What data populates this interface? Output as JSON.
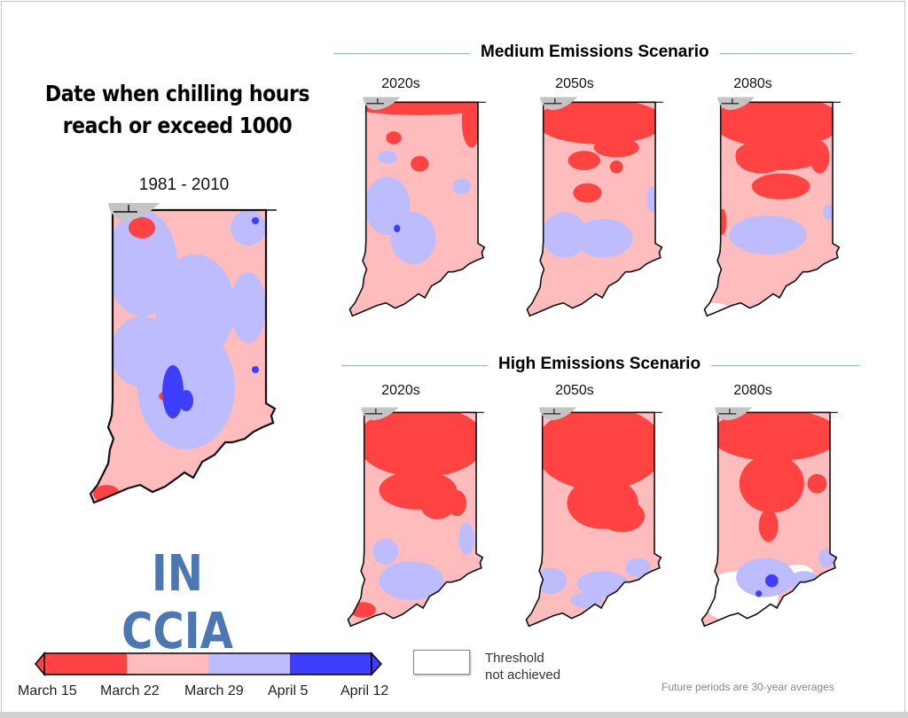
{
  "title": "Date when chilling hours reach or exceed 1000",
  "title_line1": "Date when chilling hours",
  "title_line2": "reach or exceed 1000",
  "baseline_period": "1981 - 2010",
  "logo_text": "IN CCIA",
  "scenarios": [
    {
      "title": "Medium Emissions Scenario",
      "periods": [
        "2020s",
        "2050s",
        "2080s"
      ]
    },
    {
      "title": "High Emissions Scenario",
      "periods": [
        "2020s",
        "2050s",
        "2080s"
      ]
    }
  ],
  "legend": {
    "labels": [
      "March 15",
      "March 22",
      "March 29",
      "April 5",
      "April 12"
    ],
    "colors": [
      "#ff4242",
      "#ffbcbc",
      "#bcbcff",
      "#3e3eff"
    ],
    "threshold_line1": "Threshold",
    "threshold_line2": "not achieved",
    "threshold_color": "#ffffff"
  },
  "footnote": "Future periods are 30-year averages",
  "colors": {
    "lake": "#c4c4c4",
    "logo": "#4b77b4",
    "rule": "#8fb2d6"
  }
}
